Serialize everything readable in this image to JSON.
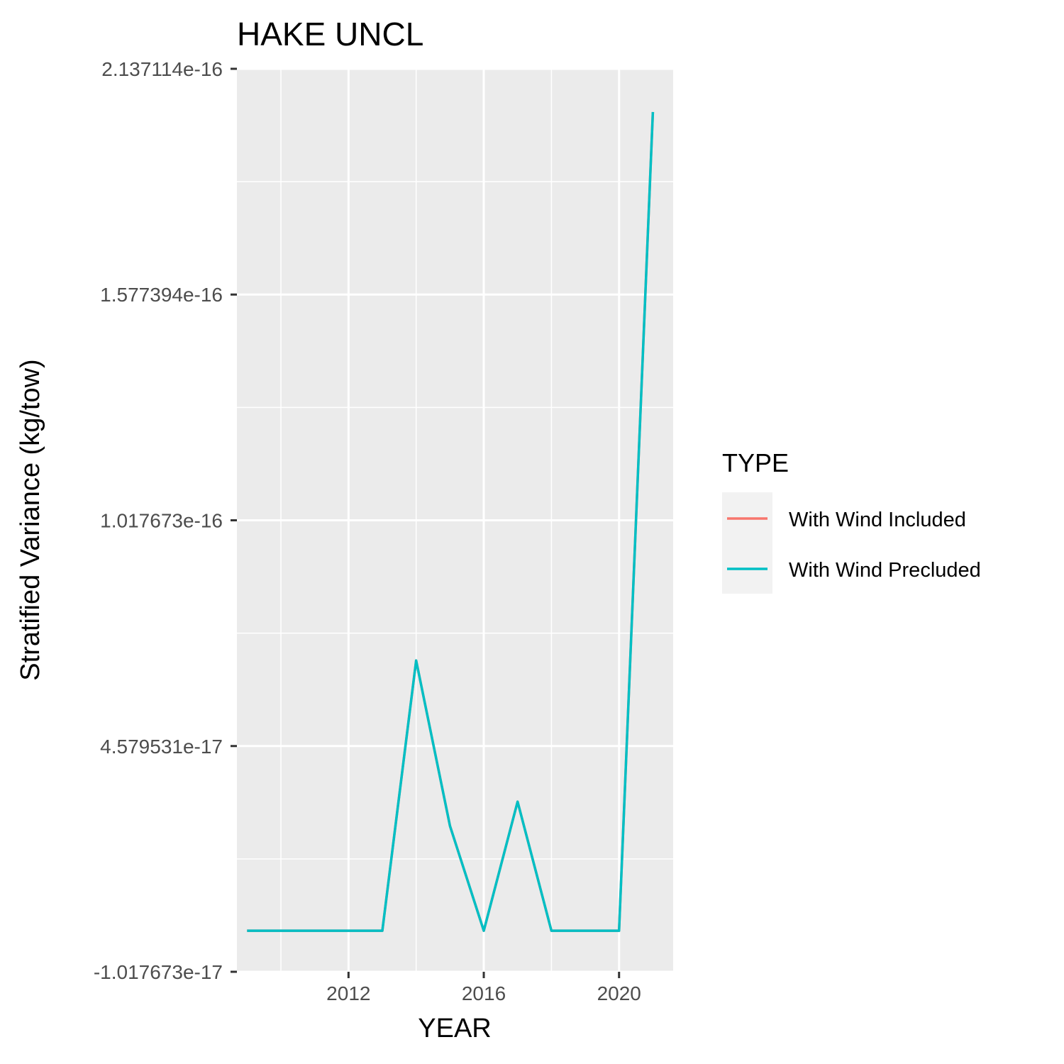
{
  "chart_data": {
    "type": "line",
    "title": "HAKE UNCL",
    "xlabel": "YEAR",
    "ylabel": "Stratified Variance (kg/tow)",
    "xlim": [
      2008.7,
      2021.6
    ],
    "ylim": [
      -1.017673e-17,
      2.137114e-16
    ],
    "x_ticks": [
      2012,
      2016,
      2020
    ],
    "x_tick_labels": [
      "2012",
      "2016",
      "2020"
    ],
    "y_ticks": [
      -1.017673e-17,
      4.579531e-17,
      1.017673e-16,
      1.577394e-16,
      2.137114e-16
    ],
    "y_tick_labels": [
      "-1.017673e-17",
      "4.579531e-17",
      "1.017673e-16",
      "1.577394e-16",
      "2.137114e-16"
    ],
    "grid": true,
    "legend": {
      "title": "TYPE",
      "placement": "right",
      "entries": [
        {
          "label": "With Wind Included",
          "color": "#F8766D"
        },
        {
          "label": "With Wind Precluded",
          "color": "#00BFC4"
        }
      ]
    },
    "x": [
      2009,
      2010,
      2011,
      2012,
      2013,
      2014,
      2015,
      2016,
      2017,
      2018,
      2019,
      2020,
      2021
    ],
    "series": [
      {
        "name": "With Wind Included",
        "color": "#F8766D",
        "values": [
          0,
          0,
          0,
          0,
          0,
          6.7e-17,
          2.6e-17,
          0,
          3.2e-17,
          0,
          0,
          0,
          2.03e-16
        ]
      },
      {
        "name": "With Wind Precluded",
        "color": "#00BFC4",
        "values": [
          0,
          0,
          0,
          0,
          0,
          6.7e-17,
          2.6e-17,
          0,
          3.2e-17,
          0,
          0,
          0,
          2.03e-16
        ]
      }
    ]
  }
}
